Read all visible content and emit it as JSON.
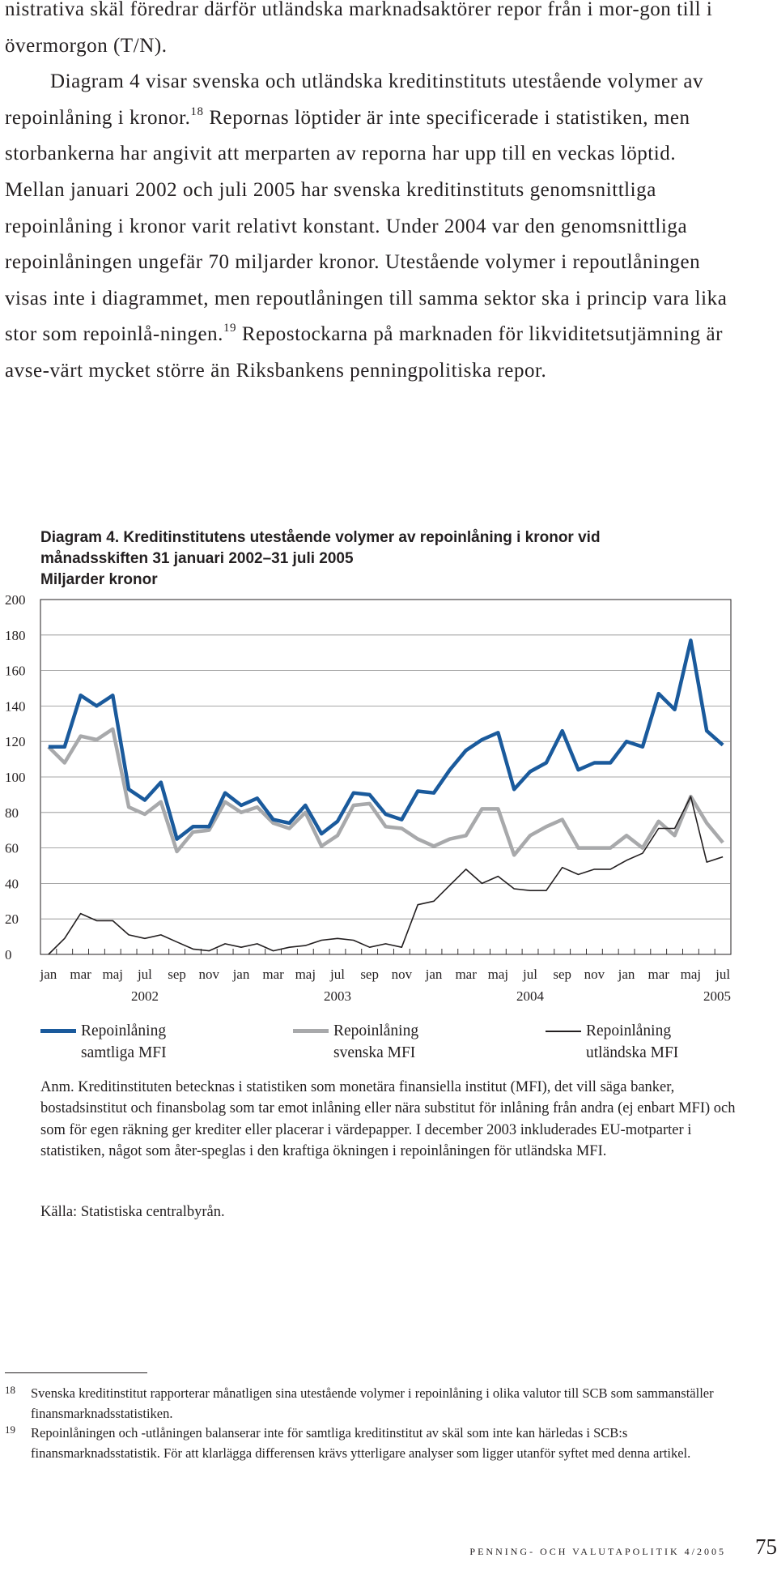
{
  "body": {
    "p1": "nistrativa skäl föredrar därför utländska marknadsaktörer repor från i mor-gon till i övermorgon (T/N).",
    "p2_a": "Diagram 4 visar svenska och utländska kreditinstituts utestående volymer av repoinlåning i kronor.",
    "fn_ref_18": "18",
    "p2_b": " Repornas löptider är inte specificerade i statistiken, men storbankerna har angivit att merparten av reporna har upp till en veckas löptid. Mellan januari 2002 och juli 2005 har svenska kreditinstituts genomsnittliga repoinlåning i kronor varit relativt konstant. Under 2004 var den genomsnittliga repoinlåningen ungefär 70 miljarder kronor. Utestående volymer i repoutlåningen visas inte i diagrammet, men repoutlåningen till samma sektor ska i princip vara lika stor som repoinlå-ningen.",
    "fn_ref_19": "19",
    "p2_c": " Repostockarna på marknaden för likviditetsutjämning är avse-värt mycket större än Riksbankens penningpolitiska repor."
  },
  "chart_title": {
    "line1": "Diagram 4. Kreditinstitutens utestående volymer av repoinlåning i kronor vid",
    "line2": "månadsskiften 31 januari 2002–31 juli 2005",
    "unit": "Miljarder kronor"
  },
  "chart_data": {
    "type": "line",
    "ylim": [
      0,
      200
    ],
    "yticks": [
      "0",
      "20",
      "40",
      "60",
      "80",
      "100",
      "120",
      "140",
      "160",
      "180",
      "200"
    ],
    "xtick_labels": [
      "jan",
      "mar",
      "maj",
      "jul",
      "sep",
      "nov",
      "jan",
      "mar",
      "maj",
      "jul",
      "sep",
      "nov",
      "jan",
      "mar",
      "maj",
      "jul",
      "sep",
      "nov",
      "jan",
      "mar",
      "maj",
      "jul"
    ],
    "year_labels": [
      "2002",
      "2003",
      "2004",
      "2005"
    ],
    "grid": true,
    "series": [
      {
        "name": "Repoinlåning samtliga MFI",
        "color": "#1a5a9c",
        "values": [
          117,
          117,
          146,
          140,
          146,
          93,
          87,
          97,
          65,
          72,
          72,
          91,
          84,
          88,
          76,
          74,
          84,
          68,
          75,
          91,
          90,
          79,
          76,
          92,
          91,
          104,
          115,
          121,
          125,
          93,
          103,
          108,
          126,
          104,
          108,
          108,
          120,
          117,
          147,
          138,
          177,
          126,
          118
        ]
      },
      {
        "name": "Repoinlåning svenska MFI",
        "color": "#a8a9ab",
        "values": [
          117,
          108,
          123,
          121,
          127,
          83,
          79,
          86,
          58,
          69,
          70,
          86,
          80,
          83,
          74,
          71,
          80,
          61,
          67,
          84,
          85,
          72,
          71,
          65,
          61,
          65,
          67,
          82,
          82,
          56,
          67,
          72,
          76,
          60,
          60,
          60,
          67,
          60,
          75,
          67,
          89,
          74,
          63
        ]
      },
      {
        "name": "Repoinlåning utländska MFI",
        "color": "#231f20",
        "values": [
          0,
          9,
          23,
          19,
          19,
          11,
          9,
          11,
          7,
          3,
          2,
          6,
          4,
          6,
          2,
          4,
          5,
          8,
          9,
          8,
          4,
          6,
          4,
          28,
          30,
          39,
          48,
          40,
          44,
          37,
          36,
          36,
          49,
          45,
          48,
          48,
          53,
          57,
          71,
          71,
          89,
          52,
          55
        ]
      }
    ]
  },
  "legend": [
    {
      "line1": "Repoinlåning",
      "line2": "samtliga MFI"
    },
    {
      "line1": "Repoinlåning",
      "line2": "svenska MFI"
    },
    {
      "line1": "Repoinlåning",
      "line2": "utländska MFI"
    }
  ],
  "note": "Anm. Kreditinstituten betecknas i statistiken som monetära finansiella institut (MFI), det vill säga banker, bostadsinstitut och finansbolag som tar emot inlåning eller nära substitut för inlåning från andra (ej enbart MFI) och som för egen räkning ger krediter eller placerar i värdepapper. I december 2003 inkluderades EU-motparter i statistiken, något som åter-speglas i den kraftiga ökningen i repoinlåningen för utländska MFI.",
  "source": "Källa: Statistiska centralbyrån.",
  "footnotes": [
    {
      "num": "18",
      "text": "Svenska kreditinstitut rapporterar månatligen sina utestående volymer i repoinlåning i olika valutor till SCB som sammanställer finansmarknadsstatistiken."
    },
    {
      "num": "19",
      "text": "Repoinlåningen och -utlåningen balanserar inte för samtliga kreditinstitut av skäl som inte kan härledas i SCB:s finansmarknadsstatistik. För att klarlägga differensen krävs ytterligare analyser som ligger utanför syftet med denna artikel."
    }
  ],
  "footer": "PENNING- OCH VALUTAPOLITIK 4/2005",
  "page_number": "75"
}
